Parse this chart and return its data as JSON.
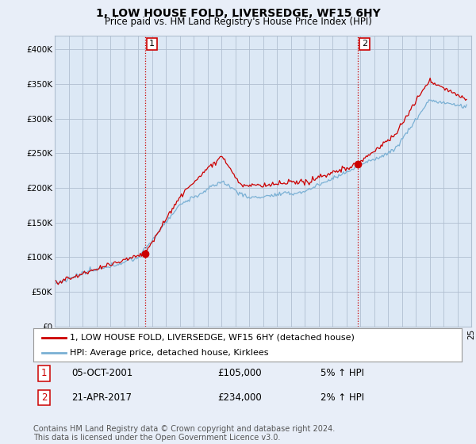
{
  "title": "1, LOW HOUSE FOLD, LIVERSEDGE, WF15 6HY",
  "subtitle": "Price paid vs. HM Land Registry's House Price Index (HPI)",
  "ylim": [
    0,
    420000
  ],
  "yticks": [
    0,
    50000,
    100000,
    150000,
    200000,
    250000,
    300000,
    350000,
    400000
  ],
  "ytick_labels": [
    "£0",
    "£50K",
    "£100K",
    "£150K",
    "£200K",
    "£250K",
    "£300K",
    "£350K",
    "£400K"
  ],
  "xlim_start": 1995.5,
  "xlim_end": 2025.2,
  "background_color": "#e8eef8",
  "plot_bg_color": "#dce8f5",
  "grid_color": "#b0bfd0",
  "sale1_x": 2002.0,
  "sale1_y": 105000,
  "sale2_x": 2017.33,
  "sale2_y": 234000,
  "sale_color": "#cc0000",
  "hpi_color": "#7ab0d4",
  "legend_label_sale": "1, LOW HOUSE FOLD, LIVERSEDGE, WF15 6HY (detached house)",
  "legend_label_hpi": "HPI: Average price, detached house, Kirklees",
  "annotation1_label": "1",
  "annotation1_date": "05-OCT-2001",
  "annotation1_price": "£105,000",
  "annotation1_hpi": "5% ↑ HPI",
  "annotation2_label": "2",
  "annotation2_date": "21-APR-2017",
  "annotation2_price": "£234,000",
  "annotation2_hpi": "2% ↑ HPI",
  "footer": "Contains HM Land Registry data © Crown copyright and database right 2024.\nThis data is licensed under the Open Government Licence v3.0.",
  "title_fontsize": 10,
  "subtitle_fontsize": 8.5,
  "tick_fontsize": 7.5,
  "legend_fontsize": 8,
  "annot_fontsize": 8.5
}
